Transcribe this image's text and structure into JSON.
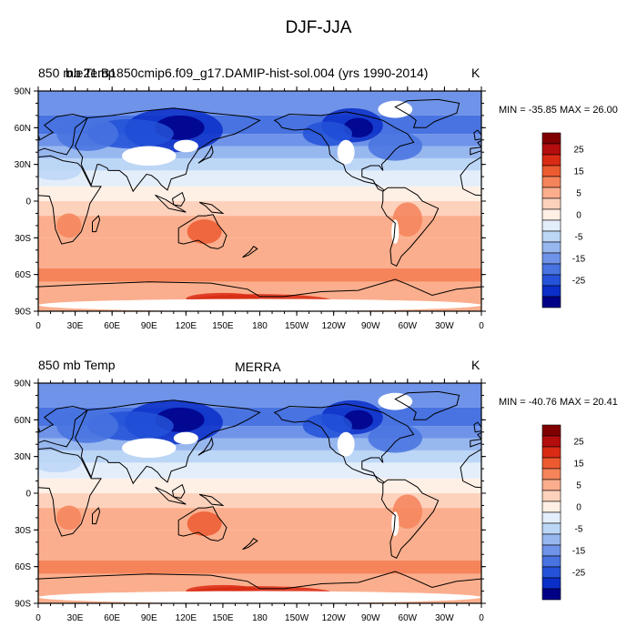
{
  "figure": {
    "title": "DJF-JJA"
  },
  "panels": [
    {
      "id": "top",
      "left_string": "850 mb Temp",
      "center_string": "b.e21.B1850cmip6.f09_g17.DAMIP-hist-sol.004 (yrs 1990-2014)",
      "unit_string": "K",
      "minmax_text": "MIN = -35.85 MAX =  26.00"
    },
    {
      "id": "bottom",
      "left_string": "850 mb Temp",
      "center_string": "MERRA",
      "unit_string": "K",
      "minmax_text": "MIN = -40.76 MAX =  20.41"
    }
  ],
  "axes": {
    "lat_ticks": [
      "90N",
      "60N",
      "30N",
      "0",
      "30S",
      "60S",
      "90S"
    ],
    "lon_ticks": [
      "0",
      "30E",
      "60E",
      "90E",
      "120E",
      "150E",
      "180",
      "150W",
      "120W",
      "90W",
      "60W",
      "30W",
      "0"
    ]
  },
  "colorbar": {
    "labels": [
      "25",
      "15",
      "5",
      "0",
      "-5",
      "-15",
      "-25"
    ],
    "colors": [
      "#800000",
      "#b40d0d",
      "#d92b14",
      "#ec5b30",
      "#f5845a",
      "#fbae8d",
      "#fdd2bd",
      "#fff0e6",
      "#e4eefb",
      "#bcd6f6",
      "#97b7ef",
      "#6f93e8",
      "#4873e1",
      "#2552d8",
      "#0a2ec8",
      "#000087"
    ],
    "missing_color": "#ffffff"
  },
  "map": {
    "projection": "cylindrical-equidistant",
    "ocean_band_note": "",
    "coastline_color": "#000000"
  }
}
